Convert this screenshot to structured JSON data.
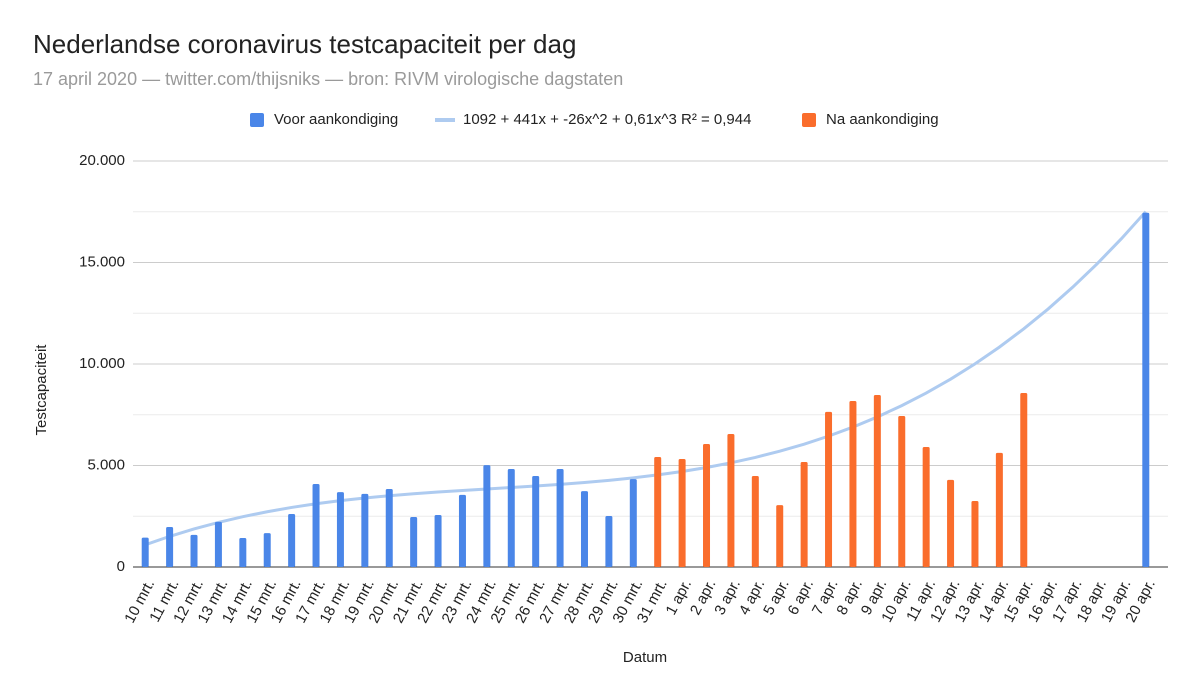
{
  "chart_data": {
    "type": "bar",
    "title": "Nederlandse coronavirus testcapaciteit per dag",
    "subtitle": "17 april 2020 — twitter.com/thijsniks — bron: RIVM virologische dagstaten",
    "x_label": "Datum",
    "y_label": "Testcapaciteit",
    "categories": [
      "10 mrt.",
      "11 mrt.",
      "12 mrt.",
      "13 mrt.",
      "14 mrt.",
      "15 mrt.",
      "16 mrt.",
      "17 mrt.",
      "18 mrt.",
      "19 mrt.",
      "20 mrt.",
      "21 mrt.",
      "22 mrt.",
      "23 mrt.",
      "24 mrt.",
      "25 mrt.",
      "26 mrt.",
      "27 mrt.",
      "28 mrt.",
      "29 mrt.",
      "30 mrt.",
      "31 mrt.",
      "1 apr.",
      "2 apr.",
      "3 apr.",
      "4 apr.",
      "5 apr.",
      "6 apr.",
      "7 apr.",
      "8 apr.",
      "9 apr.",
      "10 apr.",
      "11 apr.",
      "12 apr.",
      "13 apr.",
      "14 apr.",
      "15 apr.",
      "16 apr.",
      "17 apr.",
      "18 apr.",
      "19 apr.",
      "20 apr."
    ],
    "series": [
      {
        "name": "Voor aankondiging",
        "type": "bar",
        "color": "#4a86e8",
        "values": [
          1450,
          1970,
          1580,
          2220,
          1430,
          1670,
          2610,
          4090,
          3690,
          3600,
          3840,
          2460,
          2560,
          3550,
          5020,
          4830,
          4480,
          4830,
          3740,
          2510,
          4330,
          null,
          null,
          null,
          null,
          null,
          null,
          null,
          null,
          null,
          null,
          null,
          null,
          null,
          null,
          null,
          null,
          null,
          null,
          null,
          null,
          17450
        ]
      },
      {
        "name": "1092 + 441x + -26x^2 + 0,61x^3 R² = 0,944",
        "type": "line",
        "color": "#aecbf0",
        "values": [
          1092,
          1508,
          1875,
          2197,
          2479,
          2723,
          2934,
          3114,
          3268,
          3400,
          3512,
          3609,
          3694,
          3771,
          3844,
          3916,
          3991,
          4072,
          4164,
          4269,
          4392,
          4536,
          4705,
          4903,
          5133,
          5398,
          5703,
          6052,
          6447,
          6892,
          7392,
          7950,
          8568,
          9253,
          10005,
          10831,
          11732,
          12713,
          13778,
          14930,
          16172,
          17509
        ]
      },
      {
        "name": "Na aankondiging",
        "type": "bar",
        "color": "#fa6d2c",
        "values": [
          null,
          null,
          null,
          null,
          null,
          null,
          null,
          null,
          null,
          null,
          null,
          null,
          null,
          null,
          null,
          null,
          null,
          null,
          null,
          null,
          null,
          5420,
          5320,
          6060,
          6550,
          4480,
          3050,
          5170,
          7640,
          8180,
          8470,
          7440,
          5910,
          4290,
          3250,
          5620,
          8570,
          null,
          null,
          null,
          null,
          null
        ]
      }
    ],
    "ylim": [
      0,
      20000
    ],
    "yticks": [
      0,
      {
        "value": 5000,
        "label": "5.000"
      },
      {
        "value": 10000,
        "label": "10.000"
      },
      {
        "value": 15000,
        "label": "15.000"
      },
      {
        "value": 20000,
        "label": "20.000"
      }
    ],
    "y_minor_gridlines": [
      2500,
      7500,
      12500,
      17500
    ],
    "grid": true,
    "legend": "top"
  }
}
